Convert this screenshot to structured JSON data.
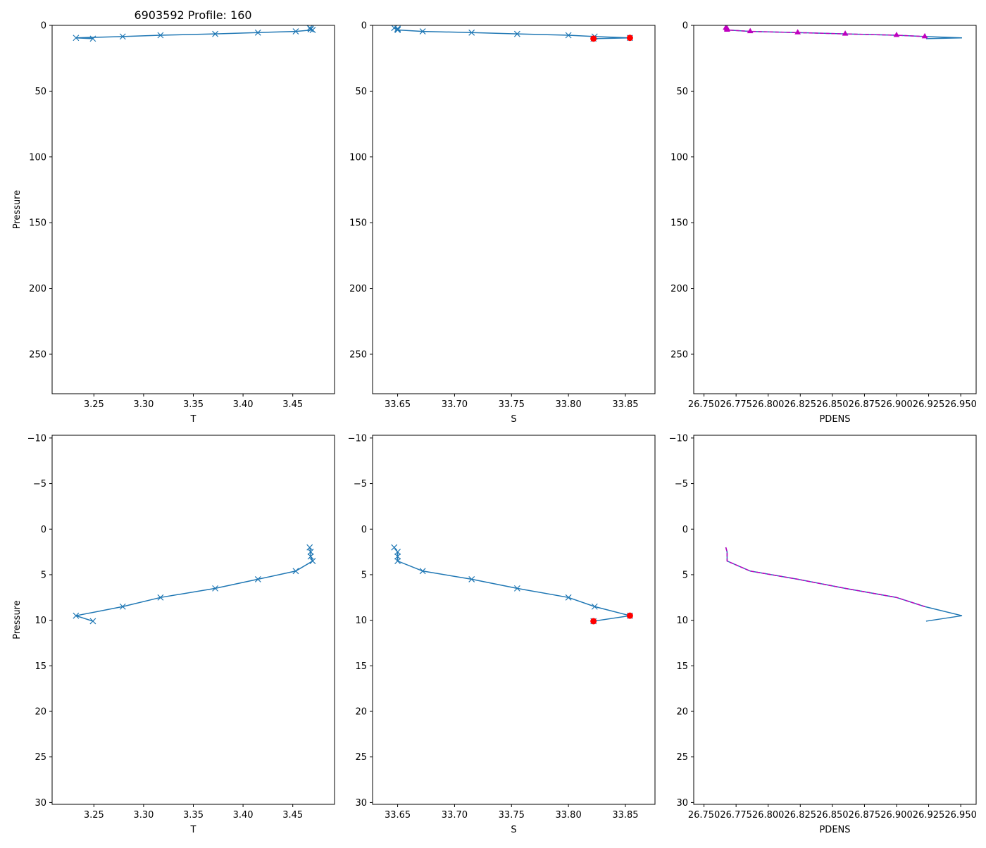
{
  "figure_title": "6903592 Profile: 160",
  "colors": {
    "series": "#1f77b4",
    "flag": "#ff0000",
    "alt": "#bf00bf",
    "axis": "#000000"
  },
  "chart_data": [
    {
      "id": "temp-full",
      "type": "line",
      "xlabel": "T",
      "ylabel": "Pressure",
      "xlim": [
        3.208,
        3.492
      ],
      "ylim": [
        280,
        0
      ],
      "xticks": [
        3.25,
        3.3,
        3.35,
        3.4,
        3.45
      ],
      "xtick_labels": [
        "3.25",
        "3.30",
        "3.35",
        "3.40",
        "3.45"
      ],
      "yticks": [
        0,
        50,
        100,
        150,
        200,
        250
      ],
      "ytick_labels": [
        "0",
        "50",
        "100",
        "150",
        "200",
        "250"
      ],
      "series": [
        {
          "name": "T",
          "style": "line-x",
          "color": "series",
          "x": [
            3.467,
            3.468,
            3.468,
            3.47,
            3.453,
            3.415,
            3.372,
            3.317,
            3.279,
            3.232,
            3.249
          ],
          "y": [
            2.0,
            2.5,
            3.0,
            3.5,
            4.6,
            5.5,
            6.5,
            7.5,
            8.5,
            9.5,
            10.1
          ]
        }
      ]
    },
    {
      "id": "sal-full",
      "type": "line",
      "xlabel": "S",
      "ylabel": "",
      "xlim": [
        33.628,
        33.876
      ],
      "ylim": [
        280,
        0
      ],
      "xticks": [
        33.65,
        33.7,
        33.75,
        33.8,
        33.85
      ],
      "xtick_labels": [
        "33.65",
        "33.70",
        "33.75",
        "33.80",
        "33.85"
      ],
      "yticks": [
        0,
        50,
        100,
        150,
        200,
        250
      ],
      "ytick_labels": [
        "0",
        "50",
        "100",
        "150",
        "200",
        "250"
      ],
      "series": [
        {
          "name": "S",
          "style": "line-x",
          "color": "series",
          "x": [
            33.647,
            33.65,
            33.65,
            33.65,
            33.672,
            33.715,
            33.755,
            33.8,
            33.823,
            33.854,
            33.822
          ],
          "y": [
            2.0,
            2.5,
            3.0,
            3.5,
            4.6,
            5.5,
            6.5,
            7.5,
            8.5,
            9.5,
            10.1
          ]
        },
        {
          "name": "flagged S",
          "style": "dots",
          "color": "flag",
          "x": [
            33.854,
            33.822
          ],
          "y": [
            9.5,
            10.1
          ]
        }
      ]
    },
    {
      "id": "dens-full",
      "type": "line",
      "xlabel": "PDENS",
      "ylabel": "",
      "xlim": [
        26.742,
        26.962
      ],
      "ylim": [
        280,
        0
      ],
      "xticks": [
        26.75,
        26.775,
        26.8,
        26.825,
        26.85,
        26.875,
        26.9,
        26.925,
        26.95
      ],
      "xtick_labels": [
        "26.750",
        "26.775",
        "26.800",
        "26.825",
        "26.850",
        "26.875",
        "26.900",
        "26.925",
        "26.950"
      ],
      "yticks": [
        0,
        50,
        100,
        150,
        200,
        250
      ],
      "ytick_labels": [
        "0",
        "50",
        "100",
        "150",
        "200",
        "250"
      ],
      "series": [
        {
          "name": "PDENS",
          "style": "line",
          "color": "series",
          "x": [
            26.767,
            26.768,
            26.768,
            26.768,
            26.786,
            26.823,
            26.86,
            26.9,
            26.922,
            26.951,
            26.923
          ],
          "y": [
            2.0,
            2.5,
            3.0,
            3.5,
            4.6,
            5.5,
            6.5,
            7.5,
            8.5,
            9.5,
            10.1
          ]
        },
        {
          "name": "PDENS alt",
          "style": "dash-tri",
          "color": "alt",
          "x": [
            26.767,
            26.768,
            26.768,
            26.768,
            26.786,
            26.823,
            26.86,
            26.9,
            26.922
          ],
          "y": [
            2.0,
            2.5,
            3.0,
            3.5,
            4.6,
            5.5,
            6.5,
            7.5,
            8.5
          ]
        }
      ]
    },
    {
      "id": "temp-zoom",
      "type": "line",
      "xlabel": "T",
      "ylabel": "Pressure",
      "xlim": [
        3.208,
        3.492
      ],
      "ylim": [
        30.2,
        -10.3
      ],
      "xticks": [
        3.25,
        3.3,
        3.35,
        3.4,
        3.45
      ],
      "xtick_labels": [
        "3.25",
        "3.30",
        "3.35",
        "3.40",
        "3.45"
      ],
      "yticks": [
        -10,
        -5,
        0,
        5,
        10,
        15,
        20,
        25,
        30
      ],
      "ytick_labels": [
        "−10",
        "−5",
        "0",
        "5",
        "10",
        "15",
        "20",
        "25",
        "30"
      ],
      "series": [
        {
          "name": "T",
          "style": "line-x",
          "color": "series",
          "x": [
            3.467,
            3.468,
            3.468,
            3.47,
            3.453,
            3.415,
            3.372,
            3.317,
            3.279,
            3.232,
            3.249
          ],
          "y": [
            2.0,
            2.5,
            3.0,
            3.5,
            4.6,
            5.5,
            6.5,
            7.5,
            8.5,
            9.5,
            10.1
          ]
        }
      ]
    },
    {
      "id": "sal-zoom",
      "type": "line",
      "xlabel": "S",
      "ylabel": "",
      "xlim": [
        33.628,
        33.876
      ],
      "ylim": [
        30.2,
        -10.3
      ],
      "xticks": [
        33.65,
        33.7,
        33.75,
        33.8,
        33.85
      ],
      "xtick_labels": [
        "33.65",
        "33.70",
        "33.75",
        "33.80",
        "33.85"
      ],
      "yticks": [
        -10,
        -5,
        0,
        5,
        10,
        15,
        20,
        25,
        30
      ],
      "ytick_labels": [
        "−10",
        "−5",
        "0",
        "5",
        "10",
        "15",
        "20",
        "25",
        "30"
      ],
      "series": [
        {
          "name": "S",
          "style": "line-x",
          "color": "series",
          "x": [
            33.647,
            33.65,
            33.65,
            33.65,
            33.672,
            33.715,
            33.755,
            33.8,
            33.823,
            33.854,
            33.822
          ],
          "y": [
            2.0,
            2.5,
            3.0,
            3.5,
            4.6,
            5.5,
            6.5,
            7.5,
            8.5,
            9.5,
            10.1
          ]
        },
        {
          "name": "flagged S",
          "style": "dots",
          "color": "flag",
          "x": [
            33.854,
            33.822
          ],
          "y": [
            9.5,
            10.1
          ]
        }
      ]
    },
    {
      "id": "dens-zoom",
      "type": "line",
      "xlabel": "PDENS",
      "ylabel": "",
      "xlim": [
        26.742,
        26.962
      ],
      "ylim": [
        30.2,
        -10.3
      ],
      "xticks": [
        26.75,
        26.775,
        26.8,
        26.825,
        26.85,
        26.875,
        26.9,
        26.925,
        26.95
      ],
      "xtick_labels": [
        "26.750",
        "26.775",
        "26.800",
        "26.825",
        "26.850",
        "26.875",
        "26.900",
        "26.925",
        "26.950"
      ],
      "yticks": [
        -10,
        -5,
        0,
        5,
        10,
        15,
        20,
        25,
        30
      ],
      "ytick_labels": [
        "−10",
        "−5",
        "0",
        "5",
        "10",
        "15",
        "20",
        "25",
        "30"
      ],
      "series": [
        {
          "name": "PDENS",
          "style": "line",
          "color": "series",
          "x": [
            26.767,
            26.768,
            26.768,
            26.768,
            26.786,
            26.823,
            26.86,
            26.9,
            26.922,
            26.951,
            26.923
          ],
          "y": [
            2.0,
            2.5,
            3.0,
            3.5,
            4.6,
            5.5,
            6.5,
            7.5,
            8.5,
            9.5,
            10.1
          ]
        },
        {
          "name": "PDENS alt",
          "style": "dash",
          "color": "alt",
          "x": [
            26.767,
            26.768,
            26.768,
            26.768,
            26.786,
            26.823,
            26.86,
            26.9,
            26.922
          ],
          "y": [
            2.0,
            2.5,
            3.0,
            3.5,
            4.6,
            5.5,
            6.5,
            7.5,
            8.5
          ]
        }
      ]
    }
  ]
}
